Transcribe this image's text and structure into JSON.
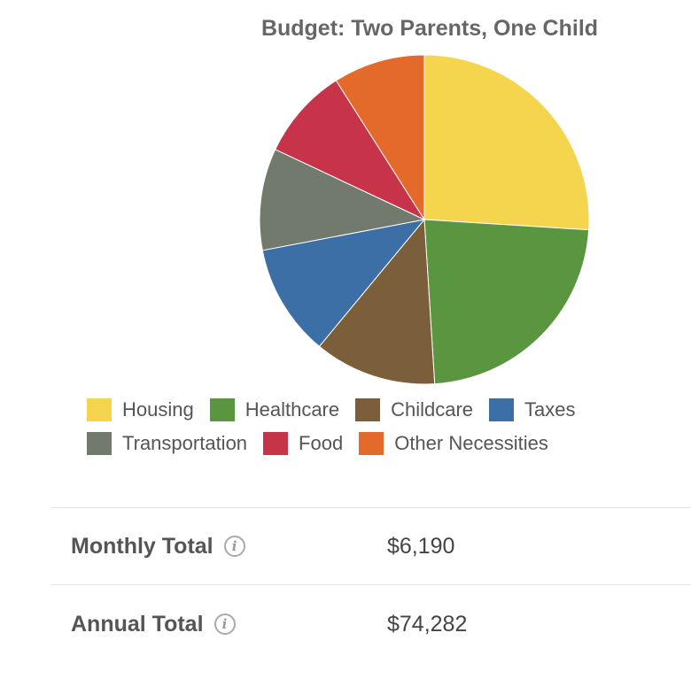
{
  "chart_data": {
    "type": "pie",
    "title": "Budget: Two Parents, One Child",
    "categories": [
      "Housing",
      "Healthcare",
      "Childcare",
      "Taxes",
      "Transportation",
      "Food",
      "Other Necessities"
    ],
    "values": [
      26,
      23,
      12,
      11,
      10,
      9,
      9
    ],
    "colors": [
      "#F5D54E",
      "#5A9640",
      "#7B5F3A",
      "#3B6FA6",
      "#727A6E",
      "#C7344A",
      "#E36A2A"
    ],
    "start_angle_deg": 0,
    "direction": "clockwise"
  },
  "summary": {
    "monthly_label": "Monthly Total",
    "monthly_value": "$6,190",
    "annual_label": "Annual Total",
    "annual_value": "$74,282",
    "info_glyph": "i"
  }
}
